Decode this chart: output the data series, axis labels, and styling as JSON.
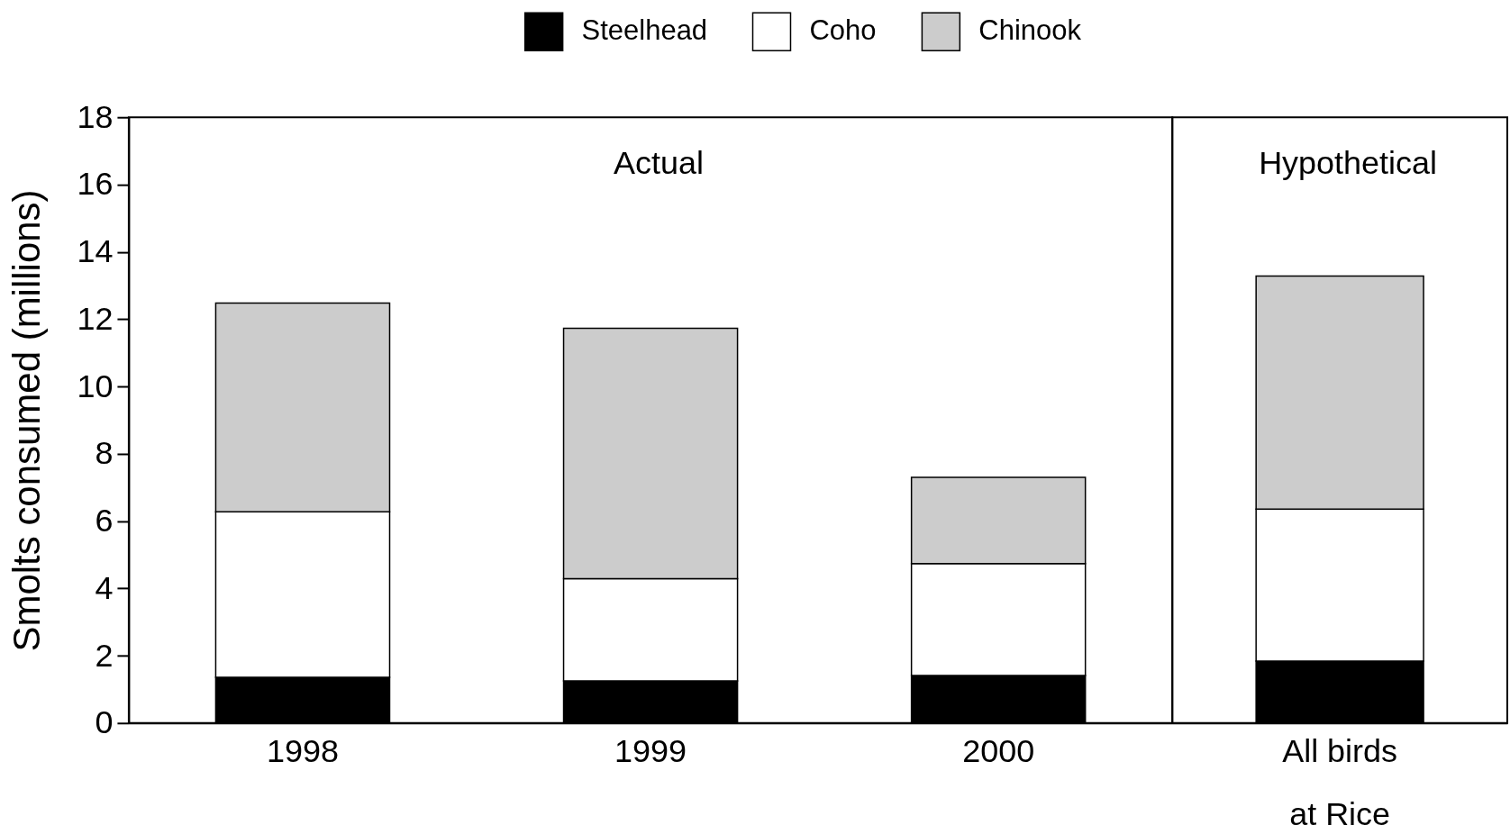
{
  "chart_data": [
    {
      "type": "bar",
      "title": "Actual",
      "ylabel": "Smolts consumed (millions)",
      "categories": [
        "1998",
        "1999",
        "2000"
      ],
      "stacked": true,
      "legend": "top",
      "series": [
        {
          "name": "Steelhead",
          "color": "#000000",
          "values": [
            1.36,
            1.25,
            1.41
          ]
        },
        {
          "name": "Coho",
          "color": "#ffffff",
          "values": [
            4.92,
            3.04,
            3.33
          ]
        },
        {
          "name": "Chinook",
          "color": "#cccccc",
          "values": [
            6.2,
            7.44,
            2.56
          ]
        }
      ],
      "ylim": [
        0,
        18
      ],
      "yticks": [
        0,
        2,
        4,
        6,
        8,
        10,
        12,
        14,
        16,
        18
      ]
    },
    {
      "type": "bar",
      "title": "Hypothetical",
      "categories": [
        "All birds\nat Rice"
      ],
      "stacked": true,
      "tick_labels": "x",
      "series": [
        {
          "color": "#000000",
          "values": [
            1.84
          ]
        },
        {
          "color": "#ffffff",
          "values": [
            4.52
          ]
        },
        {
          "color": "#cccccc",
          "values": [
            6.92
          ]
        }
      ],
      "ylim": [
        0,
        18
      ],
      "yticks": [
        0,
        2,
        4,
        6,
        8,
        10,
        12,
        14,
        16,
        18
      ]
    }
  ]
}
